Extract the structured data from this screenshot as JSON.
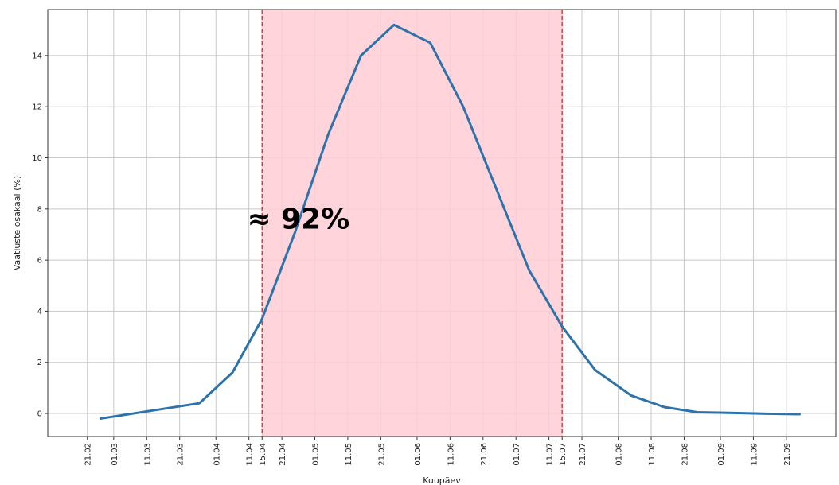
{
  "chart_data": {
    "type": "line",
    "title": "",
    "xlabel": "Kuupäev",
    "ylabel": "Vaatluste osakaal (%)",
    "ylim": [
      -0.9,
      15.8
    ],
    "grid": true,
    "x_ticks": [
      "21.02",
      "01.03",
      "11.03",
      "21.03",
      "01.04",
      "11.04",
      "15.04",
      "21.04",
      "01.05",
      "11.05",
      "21.05",
      "01.06",
      "11.06",
      "21.06",
      "01.07",
      "11.07",
      "15.07",
      "21.07",
      "01.08",
      "11.08",
      "21.08",
      "01.09",
      "11.09",
      "21.09"
    ],
    "y_ticks": [
      0,
      2,
      4,
      6,
      8,
      10,
      12,
      14
    ],
    "series": [
      {
        "color": "#2d72a8",
        "points": [
          {
            "x": "25.02",
            "y": -0.2
          },
          {
            "x": "12.03",
            "y": 0.1
          },
          {
            "x": "27.03",
            "y": 0.4
          },
          {
            "x": "06.04",
            "y": 1.6
          },
          {
            "x": "15.04",
            "y": 3.7
          },
          {
            "x": "25.04",
            "y": 7.1
          },
          {
            "x": "05.05",
            "y": 10.9
          },
          {
            "x": "15.05",
            "y": 14.0
          },
          {
            "x": "25.05",
            "y": 15.2
          },
          {
            "x": "05.06",
            "y": 14.5
          },
          {
            "x": "15.06",
            "y": 12.0
          },
          {
            "x": "25.06",
            "y": 8.8
          },
          {
            "x": "05.07",
            "y": 5.6
          },
          {
            "x": "15.07",
            "y": 3.4
          },
          {
            "x": "25.07",
            "y": 1.7
          },
          {
            "x": "05.08",
            "y": 0.7
          },
          {
            "x": "15.08",
            "y": 0.25
          },
          {
            "x": "25.08",
            "y": 0.05
          },
          {
            "x": "05.09",
            "y": 0.02
          },
          {
            "x": "15.09",
            "y": -0.01
          },
          {
            "x": "25.09",
            "y": -0.03
          }
        ]
      }
    ],
    "shaded_region": {
      "x_start": "15.04",
      "x_end": "15.07",
      "fill_color": "#ffccd5",
      "line_color": "#d94040"
    },
    "annotation": {
      "text": "≈ 92%",
      "x": "26.04",
      "y": 7.6
    }
  }
}
